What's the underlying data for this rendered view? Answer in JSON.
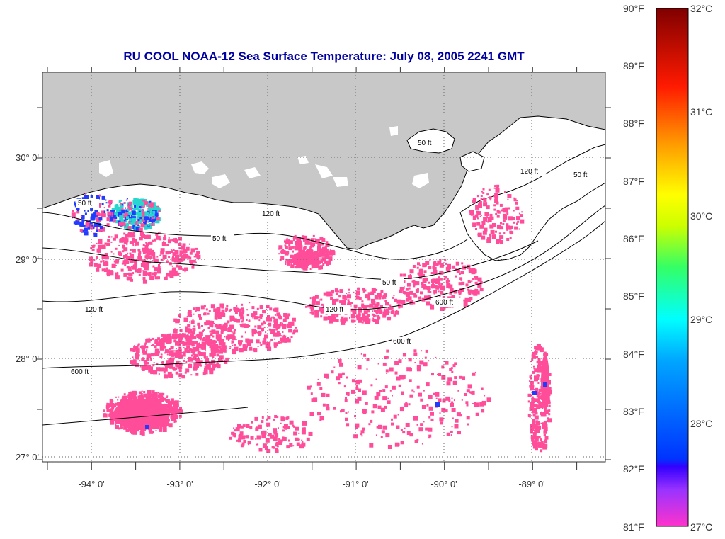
{
  "title": "RU COOL  NOAA-12  Sea Surface Temperature:  July 08, 2005 2241 GMT",
  "lon_labels": [
    "-94° 0'",
    "-93° 0'",
    "-92° 0'",
    "-91° 0'",
    "-90° 0'",
    "-89° 0'"
  ],
  "lat_labels": [
    "30° 0'",
    "29° 0'",
    "28° 0'",
    "27° 0'"
  ],
  "contour_labels": [
    "50 ft",
    "120 ft",
    "600 ft",
    "50 ft",
    "120 ft",
    "600 ft",
    "50 ft",
    "120 ft",
    "600 ft",
    "50 ft",
    "120 ft",
    "50 ft"
  ],
  "colorbar": {
    "fahrenheit": [
      "90°F",
      "89°F",
      "88°F",
      "87°F",
      "86°F",
      "85°F",
      "84°F",
      "83°F",
      "82°F",
      "81°F"
    ],
    "celsius": [
      "32°C",
      "31°C",
      "30°C",
      "29°C",
      "28°C",
      "27°C"
    ]
  },
  "colors": {
    "land": "#c8c8c8",
    "sst_27c": "#ff4d9a",
    "sst_28c": "#1f3cff",
    "sst_29c": "#26d6cf",
    "title": "#0000a0"
  }
}
